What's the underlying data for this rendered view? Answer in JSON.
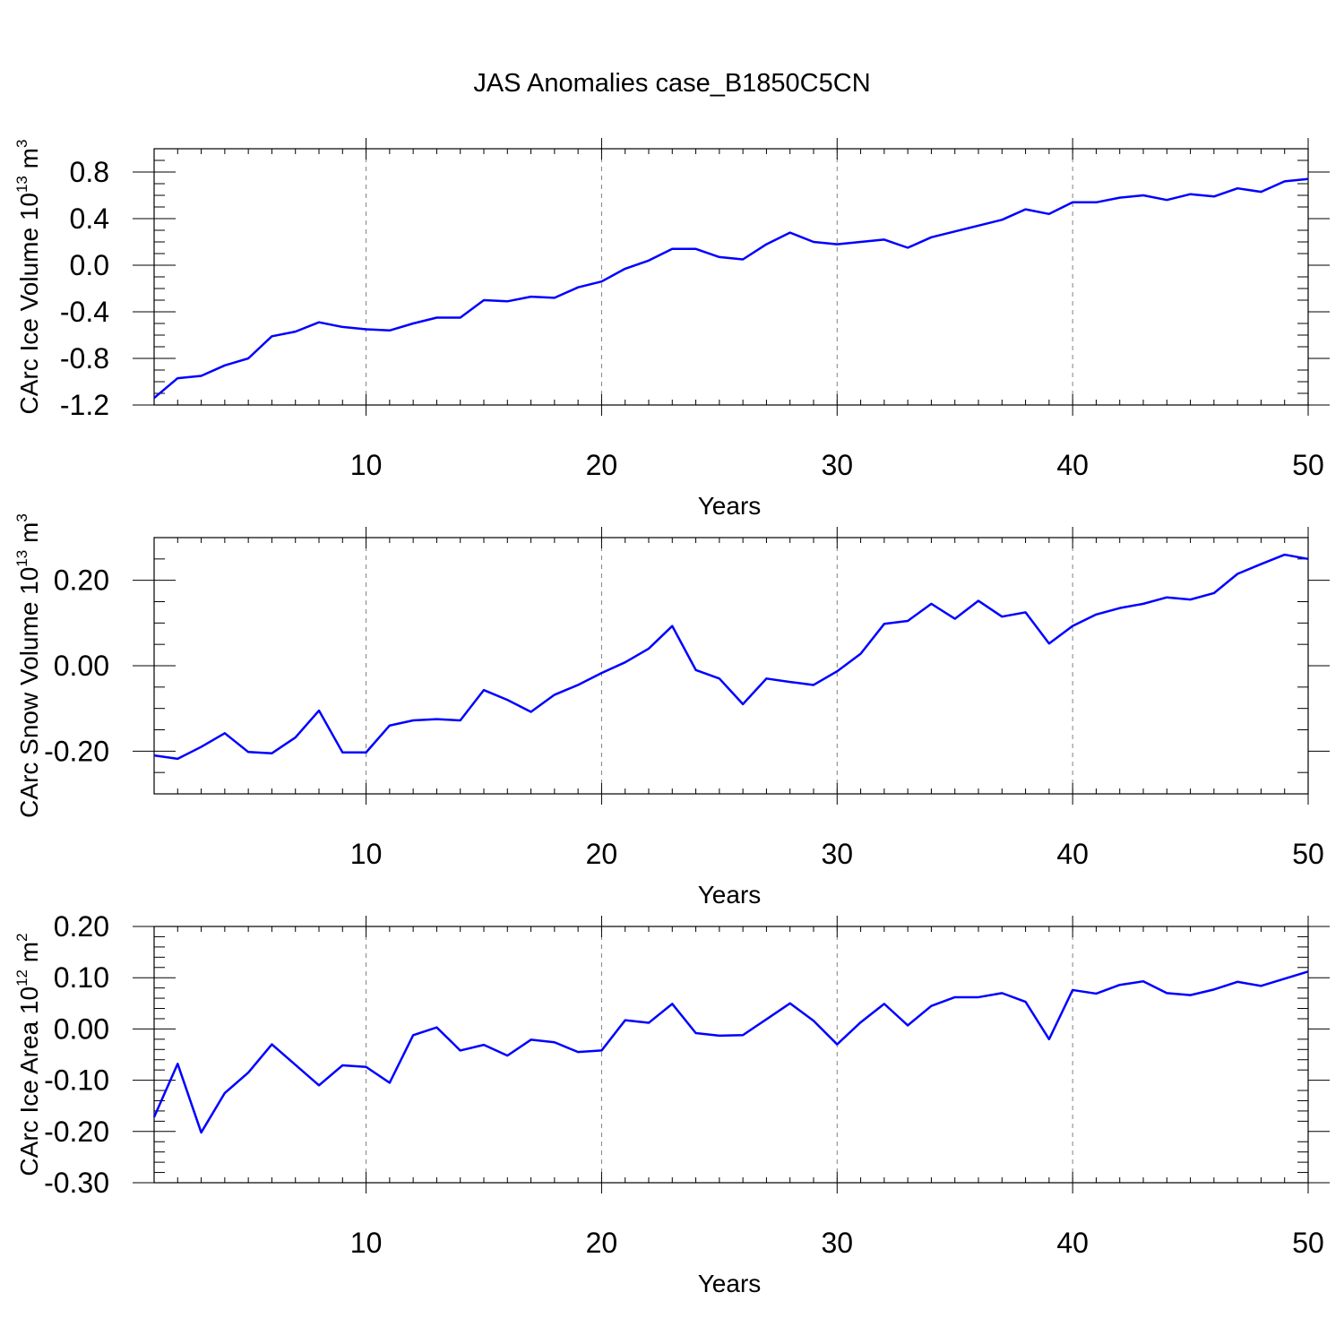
{
  "title": "JAS Anomalies case_B1850C5CN",
  "line_color": "#0000ff",
  "grid_color": "#808080",
  "chart_data": [
    {
      "type": "line",
      "xlabel": "Years",
      "ylabel_main": "CArc Ice Volume 10",
      "ylabel_exp": "13",
      "ylabel_unit": " m",
      "ylabel_unit_exp": "3",
      "xlim": [
        1,
        50
      ],
      "ylim": [
        -1.2,
        1.0
      ],
      "x_major_ticks": [
        10,
        20,
        30,
        40,
        50
      ],
      "y_major_ticks": [
        0.8,
        0.4,
        0.0,
        -0.4,
        -0.8,
        -1.2
      ],
      "y_tick_labels": [
        "0.8",
        "0.4",
        "0.0",
        "-0.4",
        "-0.8",
        "-1.2"
      ],
      "y_minor_step": 0.1,
      "x": [
        1,
        2,
        3,
        4,
        5,
        6,
        7,
        8,
        9,
        10,
        11,
        12,
        13,
        14,
        15,
        16,
        17,
        18,
        19,
        20,
        21,
        22,
        23,
        24,
        25,
        26,
        27,
        28,
        29,
        30,
        31,
        32,
        33,
        34,
        35,
        36,
        37,
        38,
        39,
        40,
        41,
        42,
        43,
        44,
        45,
        46,
        47,
        48,
        49,
        50
      ],
      "values": [
        -1.14,
        -0.97,
        -0.95,
        -0.86,
        -0.8,
        -0.61,
        -0.57,
        -0.49,
        -0.53,
        -0.55,
        -0.56,
        -0.5,
        -0.45,
        -0.45,
        -0.3,
        -0.31,
        -0.27,
        -0.28,
        -0.19,
        -0.14,
        -0.03,
        0.04,
        0.14,
        0.14,
        0.07,
        0.05,
        0.18,
        0.28,
        0.2,
        0.18,
        0.2,
        0.22,
        0.15,
        0.24,
        0.29,
        0.34,
        0.39,
        0.48,
        0.44,
        0.54,
        0.54,
        0.58,
        0.6,
        0.56,
        0.61,
        0.59,
        0.66,
        0.63,
        0.72,
        0.74
      ]
    },
    {
      "type": "line",
      "xlabel": "Years",
      "ylabel_main": "CArc Snow Volume 10",
      "ylabel_exp": "13",
      "ylabel_unit": " m",
      "ylabel_unit_exp": "3",
      "xlim": [
        1,
        50
      ],
      "ylim": [
        -0.3,
        0.3
      ],
      "x_major_ticks": [
        10,
        20,
        30,
        40,
        50
      ],
      "y_major_ticks": [
        0.2,
        0.0,
        -0.2
      ],
      "y_tick_labels": [
        "0.20",
        "0.00",
        "-0.20"
      ],
      "y_minor_step": 0.05,
      "x": [
        1,
        2,
        3,
        4,
        5,
        6,
        7,
        8,
        9,
        10,
        11,
        12,
        13,
        14,
        15,
        16,
        17,
        18,
        19,
        20,
        21,
        22,
        23,
        24,
        25,
        26,
        27,
        28,
        29,
        30,
        31,
        32,
        33,
        34,
        35,
        36,
        37,
        38,
        39,
        40,
        41,
        42,
        43,
        44,
        45,
        46,
        47,
        48,
        49,
        50
      ],
      "values": [
        -0.21,
        -0.218,
        -0.19,
        -0.158,
        -0.202,
        -0.205,
        -0.168,
        -0.105,
        -0.203,
        -0.203,
        -0.14,
        -0.128,
        -0.125,
        -0.128,
        -0.057,
        -0.08,
        -0.108,
        -0.068,
        -0.045,
        -0.017,
        0.008,
        0.04,
        0.093,
        -0.01,
        -0.03,
        -0.09,
        -0.03,
        -0.038,
        -0.045,
        -0.013,
        0.028,
        0.098,
        0.105,
        0.145,
        0.11,
        0.152,
        0.115,
        0.125,
        0.052,
        0.093,
        0.12,
        0.135,
        0.145,
        0.16,
        0.155,
        0.17,
        0.215,
        0.238,
        0.26,
        0.25
      ]
    },
    {
      "type": "line",
      "xlabel": "Years",
      "ylabel_main": "CArc Ice Area 10",
      "ylabel_exp": "12",
      "ylabel_unit": " m",
      "ylabel_unit_exp": "2",
      "xlim": [
        1,
        50
      ],
      "ylim": [
        -0.3,
        0.2
      ],
      "x_major_ticks": [
        10,
        20,
        30,
        40,
        50
      ],
      "y_major_ticks": [
        0.2,
        0.1,
        0.0,
        -0.1,
        -0.2,
        -0.3
      ],
      "y_tick_labels": [
        "0.20",
        "0.10",
        "0.00",
        "-0.10",
        "-0.20",
        "-0.30"
      ],
      "y_minor_step": 0.02,
      "x": [
        1,
        2,
        3,
        4,
        5,
        6,
        7,
        8,
        9,
        10,
        11,
        12,
        13,
        14,
        15,
        16,
        17,
        18,
        19,
        20,
        21,
        22,
        23,
        24,
        25,
        26,
        27,
        28,
        29,
        30,
        31,
        32,
        33,
        34,
        35,
        36,
        37,
        38,
        39,
        40,
        41,
        42,
        43,
        44,
        45,
        46,
        47,
        48,
        49,
        50
      ],
      "values": [
        -0.172,
        -0.068,
        -0.202,
        -0.125,
        -0.085,
        -0.03,
        -0.07,
        -0.11,
        -0.071,
        -0.074,
        -0.105,
        -0.012,
        0.003,
        -0.042,
        -0.031,
        -0.052,
        -0.021,
        -0.026,
        -0.045,
        -0.042,
        0.017,
        0.012,
        0.049,
        -0.008,
        -0.013,
        -0.012,
        0.019,
        0.05,
        0.016,
        -0.03,
        0.013,
        0.049,
        0.007,
        0.045,
        0.062,
        0.062,
        0.07,
        0.053,
        -0.02,
        0.076,
        0.069,
        0.086,
        0.093,
        0.07,
        0.066,
        0.077,
        0.092,
        0.084,
        0.098,
        0.112
      ]
    }
  ]
}
